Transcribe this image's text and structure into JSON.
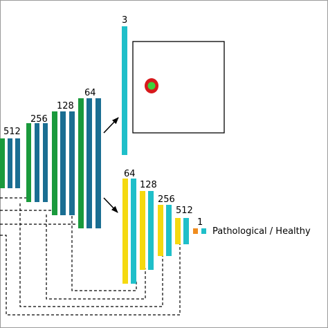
{
  "colors": {
    "encoder_green": "#1a9a3c",
    "encoder_blue": "#1a6e92",
    "decoder_yellow": "#f5d90f",
    "decoder_cyan": "#1fbfc9",
    "classifier_orange": "#f08c1e",
    "mask_red": "#d7191c",
    "mask_green": "#3cd23c",
    "line": "#000000",
    "frame": "#9a9a9a"
  },
  "encoder": {
    "blocks": [
      {
        "channels": "512"
      },
      {
        "channels": "256"
      },
      {
        "channels": "128"
      },
      {
        "channels": "64"
      }
    ]
  },
  "segmentation_head": {
    "channels": "3"
  },
  "decoder": {
    "blocks": [
      {
        "channels": "64"
      },
      {
        "channels": "128"
      },
      {
        "channels": "256"
      },
      {
        "channels": "512"
      },
      {
        "channels": "1"
      }
    ]
  },
  "classifier": {
    "label": "Pathological / Healthy"
  },
  "icons": {
    "arrow_to_segmentation": "arrow-icon",
    "arrow_to_decoder": "arrow-icon"
  }
}
